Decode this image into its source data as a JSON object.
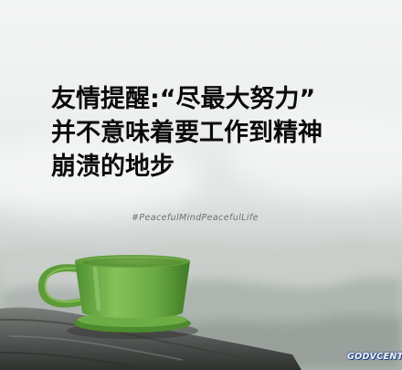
{
  "quote": {
    "line1": "友情提醒:“尽最大努力”",
    "line2": "并不意味着要工作到精神",
    "line3": "崩溃的地步"
  },
  "watermark": "#PeacefulMindPeacefulLife",
  "logo": "GODVCENT",
  "colors": {
    "cup": "#6dab45",
    "text": "#0b0b0b",
    "sky": "#f2f3f3",
    "log": "#545755"
  }
}
